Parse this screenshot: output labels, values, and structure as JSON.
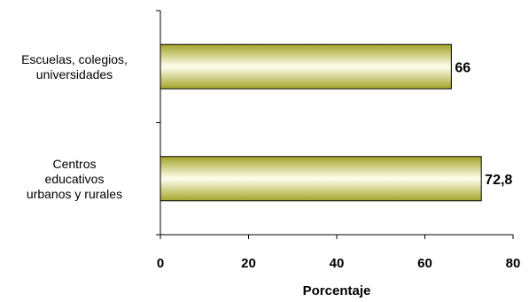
{
  "chart_data": {
    "type": "bar",
    "orientation": "horizontal",
    "categories": [
      [
        "Escuelas, colegios,",
        "universidades"
      ],
      [
        "Centros",
        "educativos",
        "urbanos y rurales"
      ]
    ],
    "values": [
      66,
      72.8
    ],
    "value_labels": [
      "66",
      "72,8"
    ],
    "xlabel": "Porcentaje",
    "xlim": [
      0,
      80
    ],
    "xticks": [
      "0",
      "20",
      "40",
      "60",
      "80"
    ],
    "grid": false,
    "legend": "none",
    "bar_colors": {
      "dark": "#A4A42A",
      "light": "#FFFFF0",
      "border": "#000000"
    }
  }
}
